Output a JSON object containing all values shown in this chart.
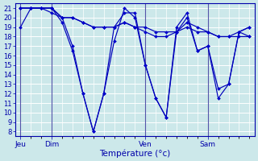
{
  "background_color": "#cce8ea",
  "grid_color": "#ffffff",
  "line_color": "#0000bb",
  "marker_color": "#0000cc",
  "xlabel": "Température (°c)",
  "xlabel_fontsize": 7.5,
  "ytick_fontsize": 6,
  "xtick_fontsize": 6.5,
  "ylim": [
    7.5,
    21.5
  ],
  "yticks": [
    8,
    9,
    10,
    11,
    12,
    13,
    14,
    15,
    16,
    17,
    18,
    19,
    20,
    21
  ],
  "day_labels": [
    "Jeu",
    "Dim",
    "Ven",
    "Sam"
  ],
  "day_positions": [
    0,
    3,
    12,
    18
  ],
  "xlim": [
    -0.5,
    22.5
  ],
  "series1": [
    19,
    21,
    21,
    21,
    20,
    17,
    12,
    8,
    12,
    17.5,
    21,
    20,
    15,
    11.5,
    9.5,
    19,
    20.5,
    16.5,
    17,
    12.5,
    13,
    18.5,
    19
  ],
  "series2": [
    21,
    21,
    21,
    21,
    19.5,
    16.5,
    12,
    8,
    12,
    19,
    20.5,
    20.5,
    15,
    11.5,
    9.5,
    18.5,
    20,
    16.5,
    17,
    11.5,
    13,
    18.5,
    19
  ],
  "series3": [
    21,
    21,
    21,
    20.5,
    20,
    20,
    19.5,
    19,
    19,
    19,
    19.5,
    19,
    18.5,
    18,
    18,
    18.5,
    19.5,
    19,
    18.5,
    18,
    18,
    18.5,
    18
  ],
  "series4": [
    21,
    21,
    21,
    21,
    20,
    20,
    19.5,
    19,
    19,
    19,
    19.5,
    19,
    19,
    18.5,
    18.5,
    18.5,
    19,
    18.5,
    18.5,
    18,
    18,
    18,
    18
  ]
}
